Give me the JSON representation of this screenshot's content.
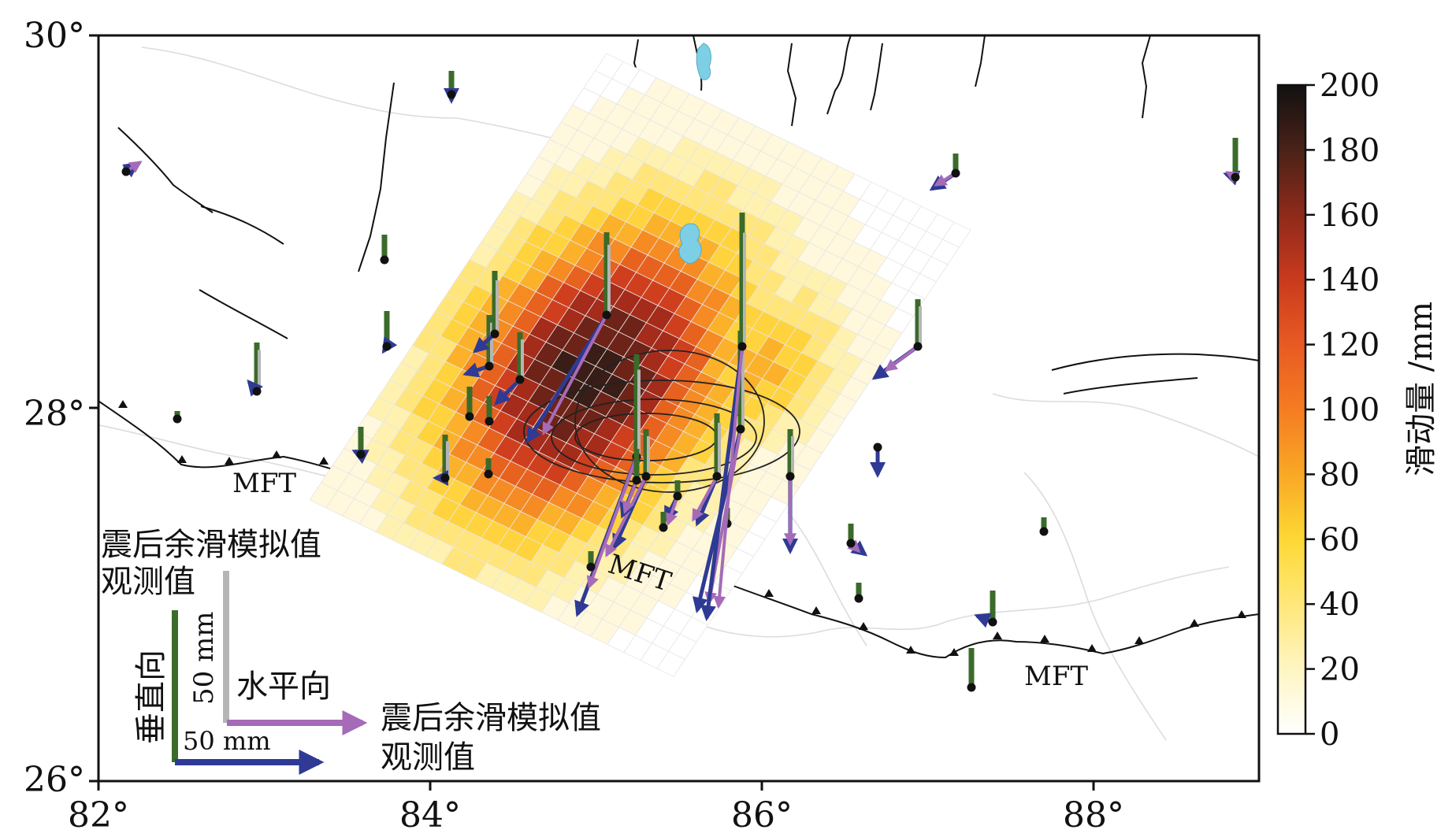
{
  "map": {
    "lon_range": [
      82,
      89
    ],
    "lat_range": [
      26,
      30
    ],
    "x_ticks": [
      "82°",
      "84°",
      "86°",
      "88°"
    ],
    "y_ticks": [
      "26°",
      "28°",
      "30°"
    ],
    "fault_labels": [
      "MFT",
      "MFT",
      "MFT"
    ]
  },
  "colorbar": {
    "label": "滑动量 /mm",
    "min": 0,
    "max": 200,
    "ticks": [
      "0",
      "20",
      "40",
      "60",
      "80",
      "100",
      "120",
      "140",
      "160",
      "180",
      "200"
    ]
  },
  "legend": {
    "vertical_model_label": "震后余滑模拟值",
    "vertical_obs_label": "观测值",
    "vertical_title": "垂直向",
    "vertical_scale": "50 mm",
    "horizontal_title": "水平向",
    "horizontal_scale": "50 mm",
    "horizontal_model_label": "震后余滑模拟值",
    "horizontal_obs_label": "观测值"
  },
  "colors": {
    "vertical_obs": "#3a6b2a",
    "vertical_model": "#b5b5b5",
    "horizontal_obs": "#2e3a94",
    "horizontal_model": "#a56bb8",
    "lake": "#7dcfe6"
  }
}
